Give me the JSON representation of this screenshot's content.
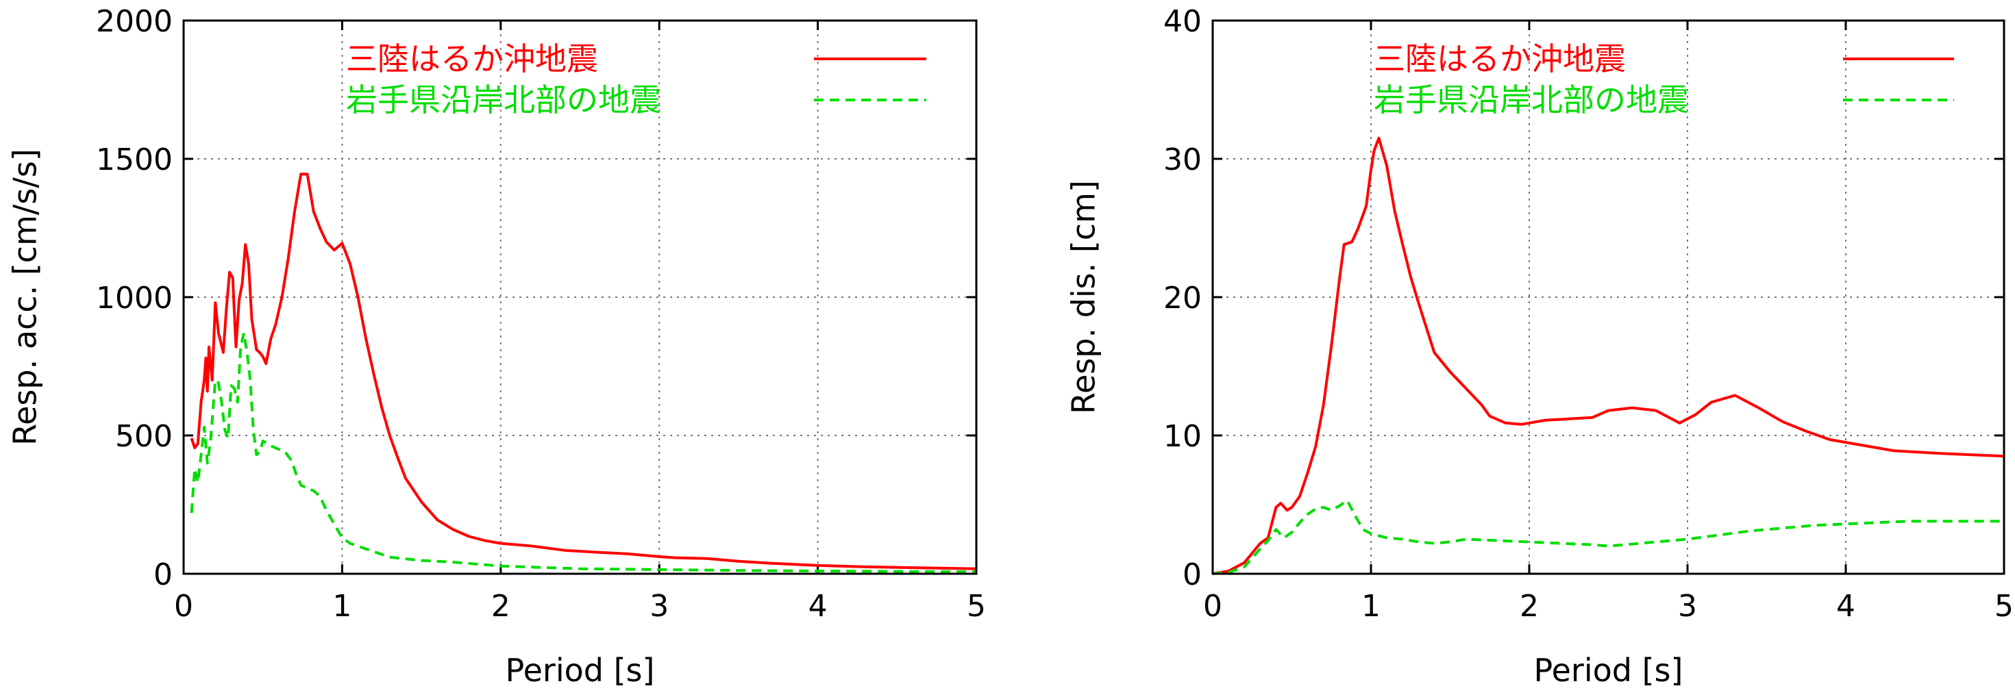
{
  "chart_data": [
    {
      "type": "line",
      "xlabel": "Period [s]",
      "ylabel": "Resp. acc. [cm/s/s]",
      "xlim": [
        0,
        5
      ],
      "ylim": [
        0,
        2000
      ],
      "xticks": [
        "0",
        "1",
        "2",
        "3",
        "4",
        "5"
      ],
      "yticks": [
        "0",
        "500",
        "1000",
        "1500",
        "2000"
      ],
      "grid": true,
      "legend_position": "top-right",
      "series": [
        {
          "name": "三陸はるか沖地震",
          "color": "#ff0000",
          "style": "solid",
          "points": [
            [
              0.05,
              490
            ],
            [
              0.07,
              455
            ],
            [
              0.09,
              470
            ],
            [
              0.11,
              620
            ],
            [
              0.13,
              700
            ],
            [
              0.14,
              780
            ],
            [
              0.15,
              660
            ],
            [
              0.16,
              820
            ],
            [
              0.18,
              700
            ],
            [
              0.2,
              980
            ],
            [
              0.22,
              870
            ],
            [
              0.25,
              800
            ],
            [
              0.27,
              960
            ],
            [
              0.29,
              1090
            ],
            [
              0.31,
              1070
            ],
            [
              0.33,
              820
            ],
            [
              0.35,
              990
            ],
            [
              0.37,
              1050
            ],
            [
              0.39,
              1190
            ],
            [
              0.41,
              1120
            ],
            [
              0.43,
              920
            ],
            [
              0.46,
              810
            ],
            [
              0.48,
              800
            ],
            [
              0.5,
              785
            ],
            [
              0.52,
              760
            ],
            [
              0.55,
              850
            ],
            [
              0.58,
              900
            ],
            [
              0.62,
              1000
            ],
            [
              0.66,
              1140
            ],
            [
              0.7,
              1310
            ],
            [
              0.74,
              1445
            ],
            [
              0.78,
              1445
            ],
            [
              0.82,
              1310
            ],
            [
              0.86,
              1250
            ],
            [
              0.9,
              1200
            ],
            [
              0.95,
              1170
            ],
            [
              1.0,
              1195
            ],
            [
              1.05,
              1120
            ],
            [
              1.1,
              1000
            ],
            [
              1.15,
              850
            ],
            [
              1.2,
              720
            ],
            [
              1.25,
              600
            ],
            [
              1.3,
              500
            ],
            [
              1.35,
              420
            ],
            [
              1.4,
              345
            ],
            [
              1.5,
              260
            ],
            [
              1.6,
              195
            ],
            [
              1.7,
              160
            ],
            [
              1.8,
              135
            ],
            [
              1.9,
              120
            ],
            [
              2.0,
              110
            ],
            [
              2.2,
              100
            ],
            [
              2.4,
              85
            ],
            [
              2.6,
              78
            ],
            [
              2.8,
              72
            ],
            [
              3.0,
              62
            ],
            [
              3.1,
              58
            ],
            [
              3.3,
              55
            ],
            [
              3.5,
              45
            ],
            [
              3.7,
              38
            ],
            [
              4.0,
              30
            ],
            [
              4.3,
              25
            ],
            [
              4.6,
              22
            ],
            [
              5.0,
              18
            ]
          ]
        },
        {
          "name": "岩手県沿岸北部の地震",
          "color": "#00dd00",
          "style": "dashed",
          "points": [
            [
              0.05,
              220
            ],
            [
              0.07,
              380
            ],
            [
              0.09,
              330
            ],
            [
              0.11,
              430
            ],
            [
              0.13,
              530
            ],
            [
              0.15,
              400
            ],
            [
              0.17,
              480
            ],
            [
              0.2,
              700
            ],
            [
              0.22,
              690
            ],
            [
              0.24,
              620
            ],
            [
              0.26,
              520
            ],
            [
              0.28,
              490
            ],
            [
              0.3,
              680
            ],
            [
              0.32,
              670
            ],
            [
              0.34,
              620
            ],
            [
              0.36,
              820
            ],
            [
              0.38,
              870
            ],
            [
              0.4,
              800
            ],
            [
              0.42,
              700
            ],
            [
              0.44,
              520
            ],
            [
              0.46,
              430
            ],
            [
              0.48,
              440
            ],
            [
              0.5,
              480
            ],
            [
              0.53,
              470
            ],
            [
              0.56,
              460
            ],
            [
              0.6,
              450
            ],
            [
              0.64,
              440
            ],
            [
              0.68,
              410
            ],
            [
              0.71,
              360
            ],
            [
              0.74,
              320
            ],
            [
              0.78,
              310
            ],
            [
              0.82,
              300
            ],
            [
              0.86,
              280
            ],
            [
              0.9,
              230
            ],
            [
              0.95,
              180
            ],
            [
              1.0,
              130
            ],
            [
              1.05,
              110
            ],
            [
              1.1,
              100
            ],
            [
              1.2,
              80
            ],
            [
              1.3,
              60
            ],
            [
              1.5,
              48
            ],
            [
              1.7,
              42
            ],
            [
              2.0,
              28
            ],
            [
              2.5,
              18
            ],
            [
              3.0,
              15
            ],
            [
              3.5,
              12
            ],
            [
              4.0,
              10
            ],
            [
              5.0,
              7
            ]
          ]
        }
      ]
    },
    {
      "type": "line",
      "xlabel": "Period [s]",
      "ylabel": "Resp. dis. [cm]",
      "xlim": [
        0,
        5
      ],
      "ylim": [
        0,
        40
      ],
      "xticks": [
        "0",
        "1",
        "2",
        "3",
        "4",
        "5"
      ],
      "yticks": [
        "0",
        "10",
        "20",
        "30",
        "40"
      ],
      "grid": true,
      "legend_position": "top-right",
      "series": [
        {
          "name": "三陸はるか沖地震",
          "color": "#ff0000",
          "style": "solid",
          "points": [
            [
              0.0,
              0
            ],
            [
              0.1,
              0.2
            ],
            [
              0.2,
              0.8
            ],
            [
              0.3,
              2.2
            ],
            [
              0.35,
              2.6
            ],
            [
              0.4,
              4.8
            ],
            [
              0.43,
              5.1
            ],
            [
              0.47,
              4.6
            ],
            [
              0.5,
              4.8
            ],
            [
              0.55,
              5.6
            ],
            [
              0.6,
              7.3
            ],
            [
              0.65,
              9.2
            ],
            [
              0.7,
              12.2
            ],
            [
              0.75,
              16.5
            ],
            [
              0.8,
              21.2
            ],
            [
              0.83,
              23.8
            ],
            [
              0.88,
              24.0
            ],
            [
              0.92,
              25.0
            ],
            [
              0.97,
              26.6
            ],
            [
              1.0,
              29.2
            ],
            [
              1.02,
              30.6
            ],
            [
              1.05,
              31.5
            ],
            [
              1.1,
              29.5
            ],
            [
              1.15,
              26.2
            ],
            [
              1.2,
              23.8
            ],
            [
              1.25,
              21.5
            ],
            [
              1.3,
              19.6
            ],
            [
              1.4,
              16.0
            ],
            [
              1.5,
              14.6
            ],
            [
              1.6,
              13.4
            ],
            [
              1.7,
              12.2
            ],
            [
              1.75,
              11.4
            ],
            [
              1.85,
              10.9
            ],
            [
              1.95,
              10.8
            ],
            [
              2.1,
              11.1
            ],
            [
              2.25,
              11.2
            ],
            [
              2.4,
              11.3
            ],
            [
              2.5,
              11.8
            ],
            [
              2.65,
              12.0
            ],
            [
              2.8,
              11.8
            ],
            [
              2.95,
              10.9
            ],
            [
              3.05,
              11.5
            ],
            [
              3.15,
              12.4
            ],
            [
              3.3,
              12.9
            ],
            [
              3.45,
              12.0
            ],
            [
              3.6,
              11.0
            ],
            [
              3.75,
              10.3
            ],
            [
              3.9,
              9.7
            ],
            [
              4.1,
              9.3
            ],
            [
              4.3,
              8.9
            ],
            [
              4.6,
              8.7
            ],
            [
              5.0,
              8.5
            ]
          ]
        },
        {
          "name": "岩手県沿岸北部の地震",
          "color": "#00dd00",
          "style": "dashed",
          "points": [
            [
              0.0,
              0
            ],
            [
              0.1,
              0.1
            ],
            [
              0.2,
              0.5
            ],
            [
              0.3,
              1.8
            ],
            [
              0.35,
              2.4
            ],
            [
              0.4,
              3.2
            ],
            [
              0.45,
              2.6
            ],
            [
              0.5,
              3.0
            ],
            [
              0.55,
              3.7
            ],
            [
              0.6,
              4.3
            ],
            [
              0.65,
              4.7
            ],
            [
              0.7,
              4.8
            ],
            [
              0.75,
              4.6
            ],
            [
              0.8,
              4.9
            ],
            [
              0.85,
              5.3
            ],
            [
              0.9,
              4.2
            ],
            [
              0.95,
              3.2
            ],
            [
              1.0,
              2.9
            ],
            [
              1.1,
              2.6
            ],
            [
              1.2,
              2.5
            ],
            [
              1.3,
              2.3
            ],
            [
              1.4,
              2.2
            ],
            [
              1.5,
              2.3
            ],
            [
              1.6,
              2.5
            ],
            [
              1.8,
              2.4
            ],
            [
              2.0,
              2.3
            ],
            [
              2.2,
              2.2
            ],
            [
              2.4,
              2.1
            ],
            [
              2.5,
              2.0
            ],
            [
              2.6,
              2.1
            ],
            [
              2.8,
              2.3
            ],
            [
              3.0,
              2.5
            ],
            [
              3.2,
              2.8
            ],
            [
              3.4,
              3.1
            ],
            [
              3.6,
              3.3
            ],
            [
              3.8,
              3.5
            ],
            [
              4.0,
              3.6
            ],
            [
              4.2,
              3.7
            ],
            [
              4.4,
              3.8
            ],
            [
              4.6,
              3.8
            ],
            [
              4.8,
              3.8
            ],
            [
              5.0,
              3.8
            ]
          ]
        }
      ]
    }
  ]
}
